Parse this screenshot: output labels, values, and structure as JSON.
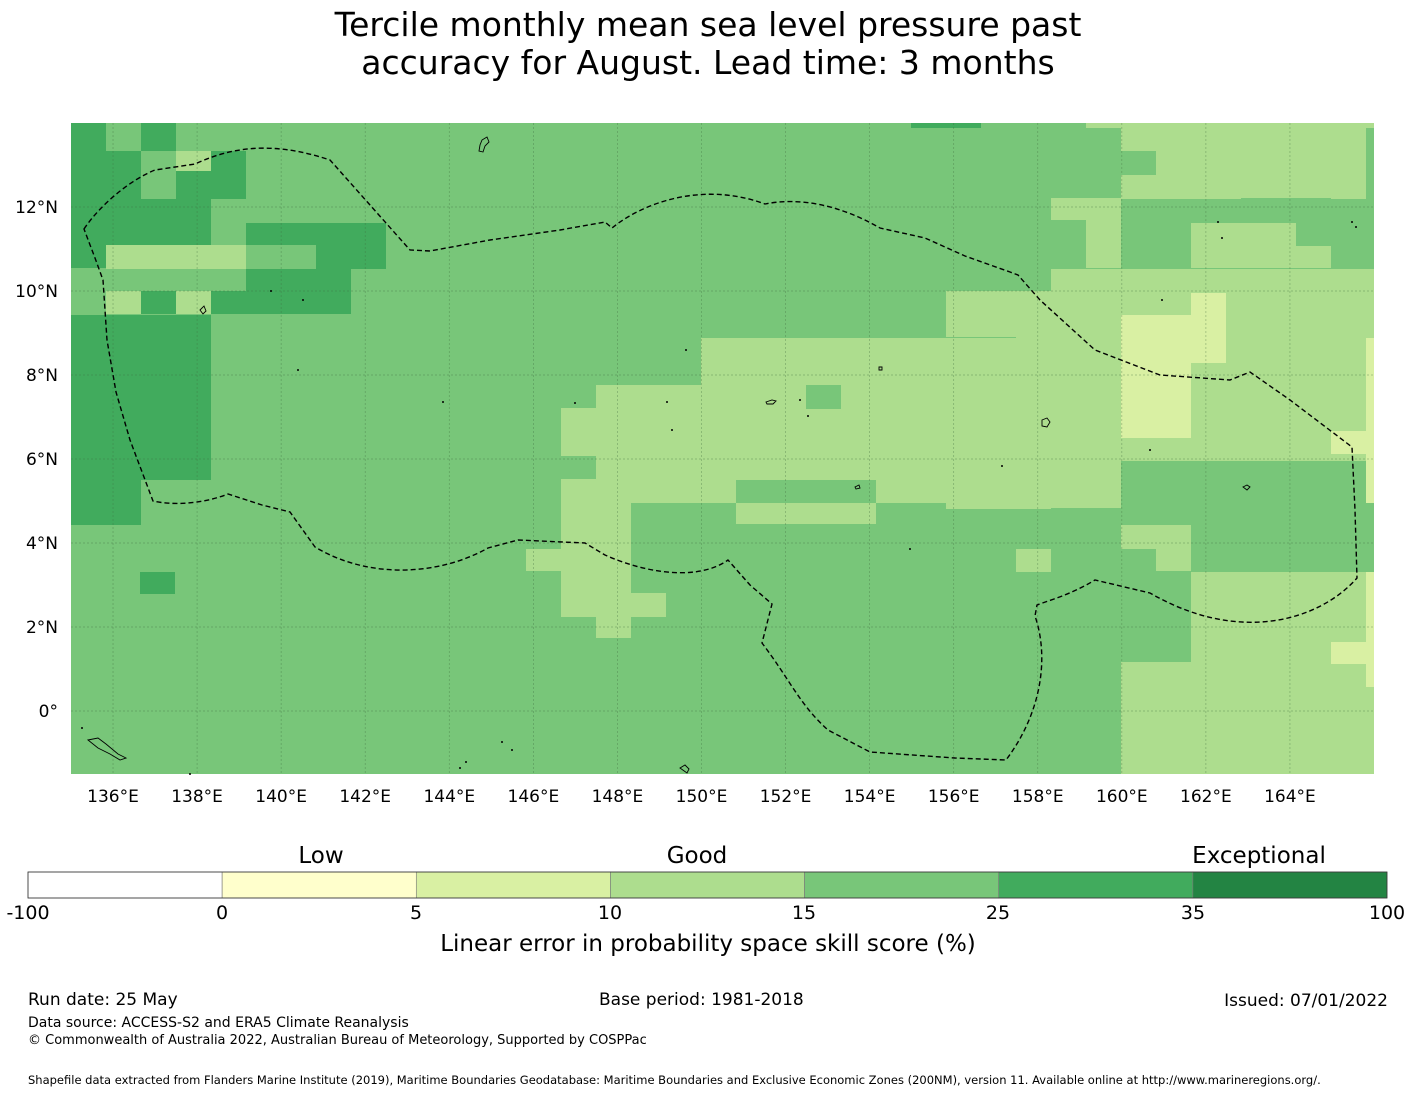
{
  "title": {
    "line1": "Tercile monthly mean sea level pressure past",
    "line2": "accuracy for August. Lead time: 3 months"
  },
  "map": {
    "lon_range": [
      135,
      166
    ],
    "lat_range": [
      -1.5,
      14
    ],
    "lon_ticks": [
      "136°E",
      "138°E",
      "140°E",
      "142°E",
      "144°E",
      "146°E",
      "148°E",
      "150°E",
      "152°E",
      "154°E",
      "156°E",
      "158°E",
      "160°E",
      "162°E",
      "164°E"
    ],
    "lat_ticks": [
      "12°N",
      "10°N",
      "8°N",
      "6°N",
      "4°N",
      "2°N",
      "0°"
    ],
    "gridlines": true,
    "eez_boundary": "dashed",
    "colors": [
      "#ffffff",
      "#ffffcc",
      "#d9f0a3",
      "#addd8e",
      "#78c679",
      "#41ab5d",
      "#238443"
    ]
  },
  "colorbar": {
    "category_labels": {
      "low": "Low",
      "good": "Good",
      "exceptional": "Exceptional"
    },
    "ticks": [
      "-100",
      "0",
      "5",
      "10",
      "15",
      "25",
      "35",
      "100"
    ],
    "title": "Linear error in probability space skill score (%)"
  },
  "footer": {
    "run_date": "Run date: 25 May",
    "base_period": "Base period: 1981-2018",
    "issued": "Issued: 07/01/2022",
    "data_source": "Data source: ACCESS-S2 and ERA5 Climate Reanalysis",
    "copyright": "© Commonwealth of Australia 2022, Australian Bureau of Meteorology, Supported by COSPPac",
    "shapefile": "Shapefile data extracted from Flanders Marine Institute (2019), Maritime Boundaries Geodatabase: Maritime Boundaries and Exclusive Economic Zones (200NM), version 11. Available online at http://www.marineregions.org/."
  }
}
